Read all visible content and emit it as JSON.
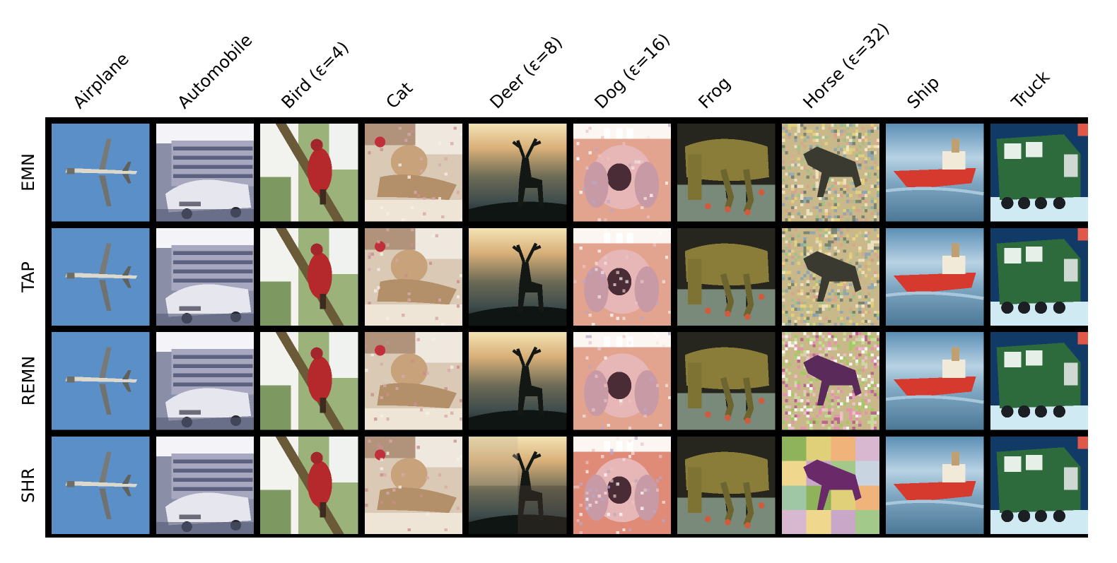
{
  "columns": [
    {
      "label": "Airplane",
      "icon": "airplane-image"
    },
    {
      "label": "Automobile",
      "icon": "automobile-image"
    },
    {
      "label": "Bird (ε=4)",
      "icon": "bird-image"
    },
    {
      "label": "Cat",
      "icon": "cat-image"
    },
    {
      "label": "Deer (ε=8)",
      "icon": "deer-image"
    },
    {
      "label": "Dog (ε=16)",
      "icon": "dog-image"
    },
    {
      "label": "Frog",
      "icon": "frog-image"
    },
    {
      "label": "Horse (ε=32)",
      "icon": "horse-image"
    },
    {
      "label": "Ship",
      "icon": "ship-image"
    },
    {
      "label": "Truck",
      "icon": "truck-image"
    }
  ],
  "rows": [
    {
      "label": "EMN"
    },
    {
      "label": "TAP"
    },
    {
      "label": "REMN"
    },
    {
      "label": "SHR"
    }
  ],
  "colors": {
    "frame": "#000000",
    "airplane_sky": "#5b8fc7",
    "bird_red": "#b5282c",
    "ship_hull": "#d63a2e",
    "truck_green": "#2e6b3c",
    "horse_noise_base": "#c9b98a"
  }
}
